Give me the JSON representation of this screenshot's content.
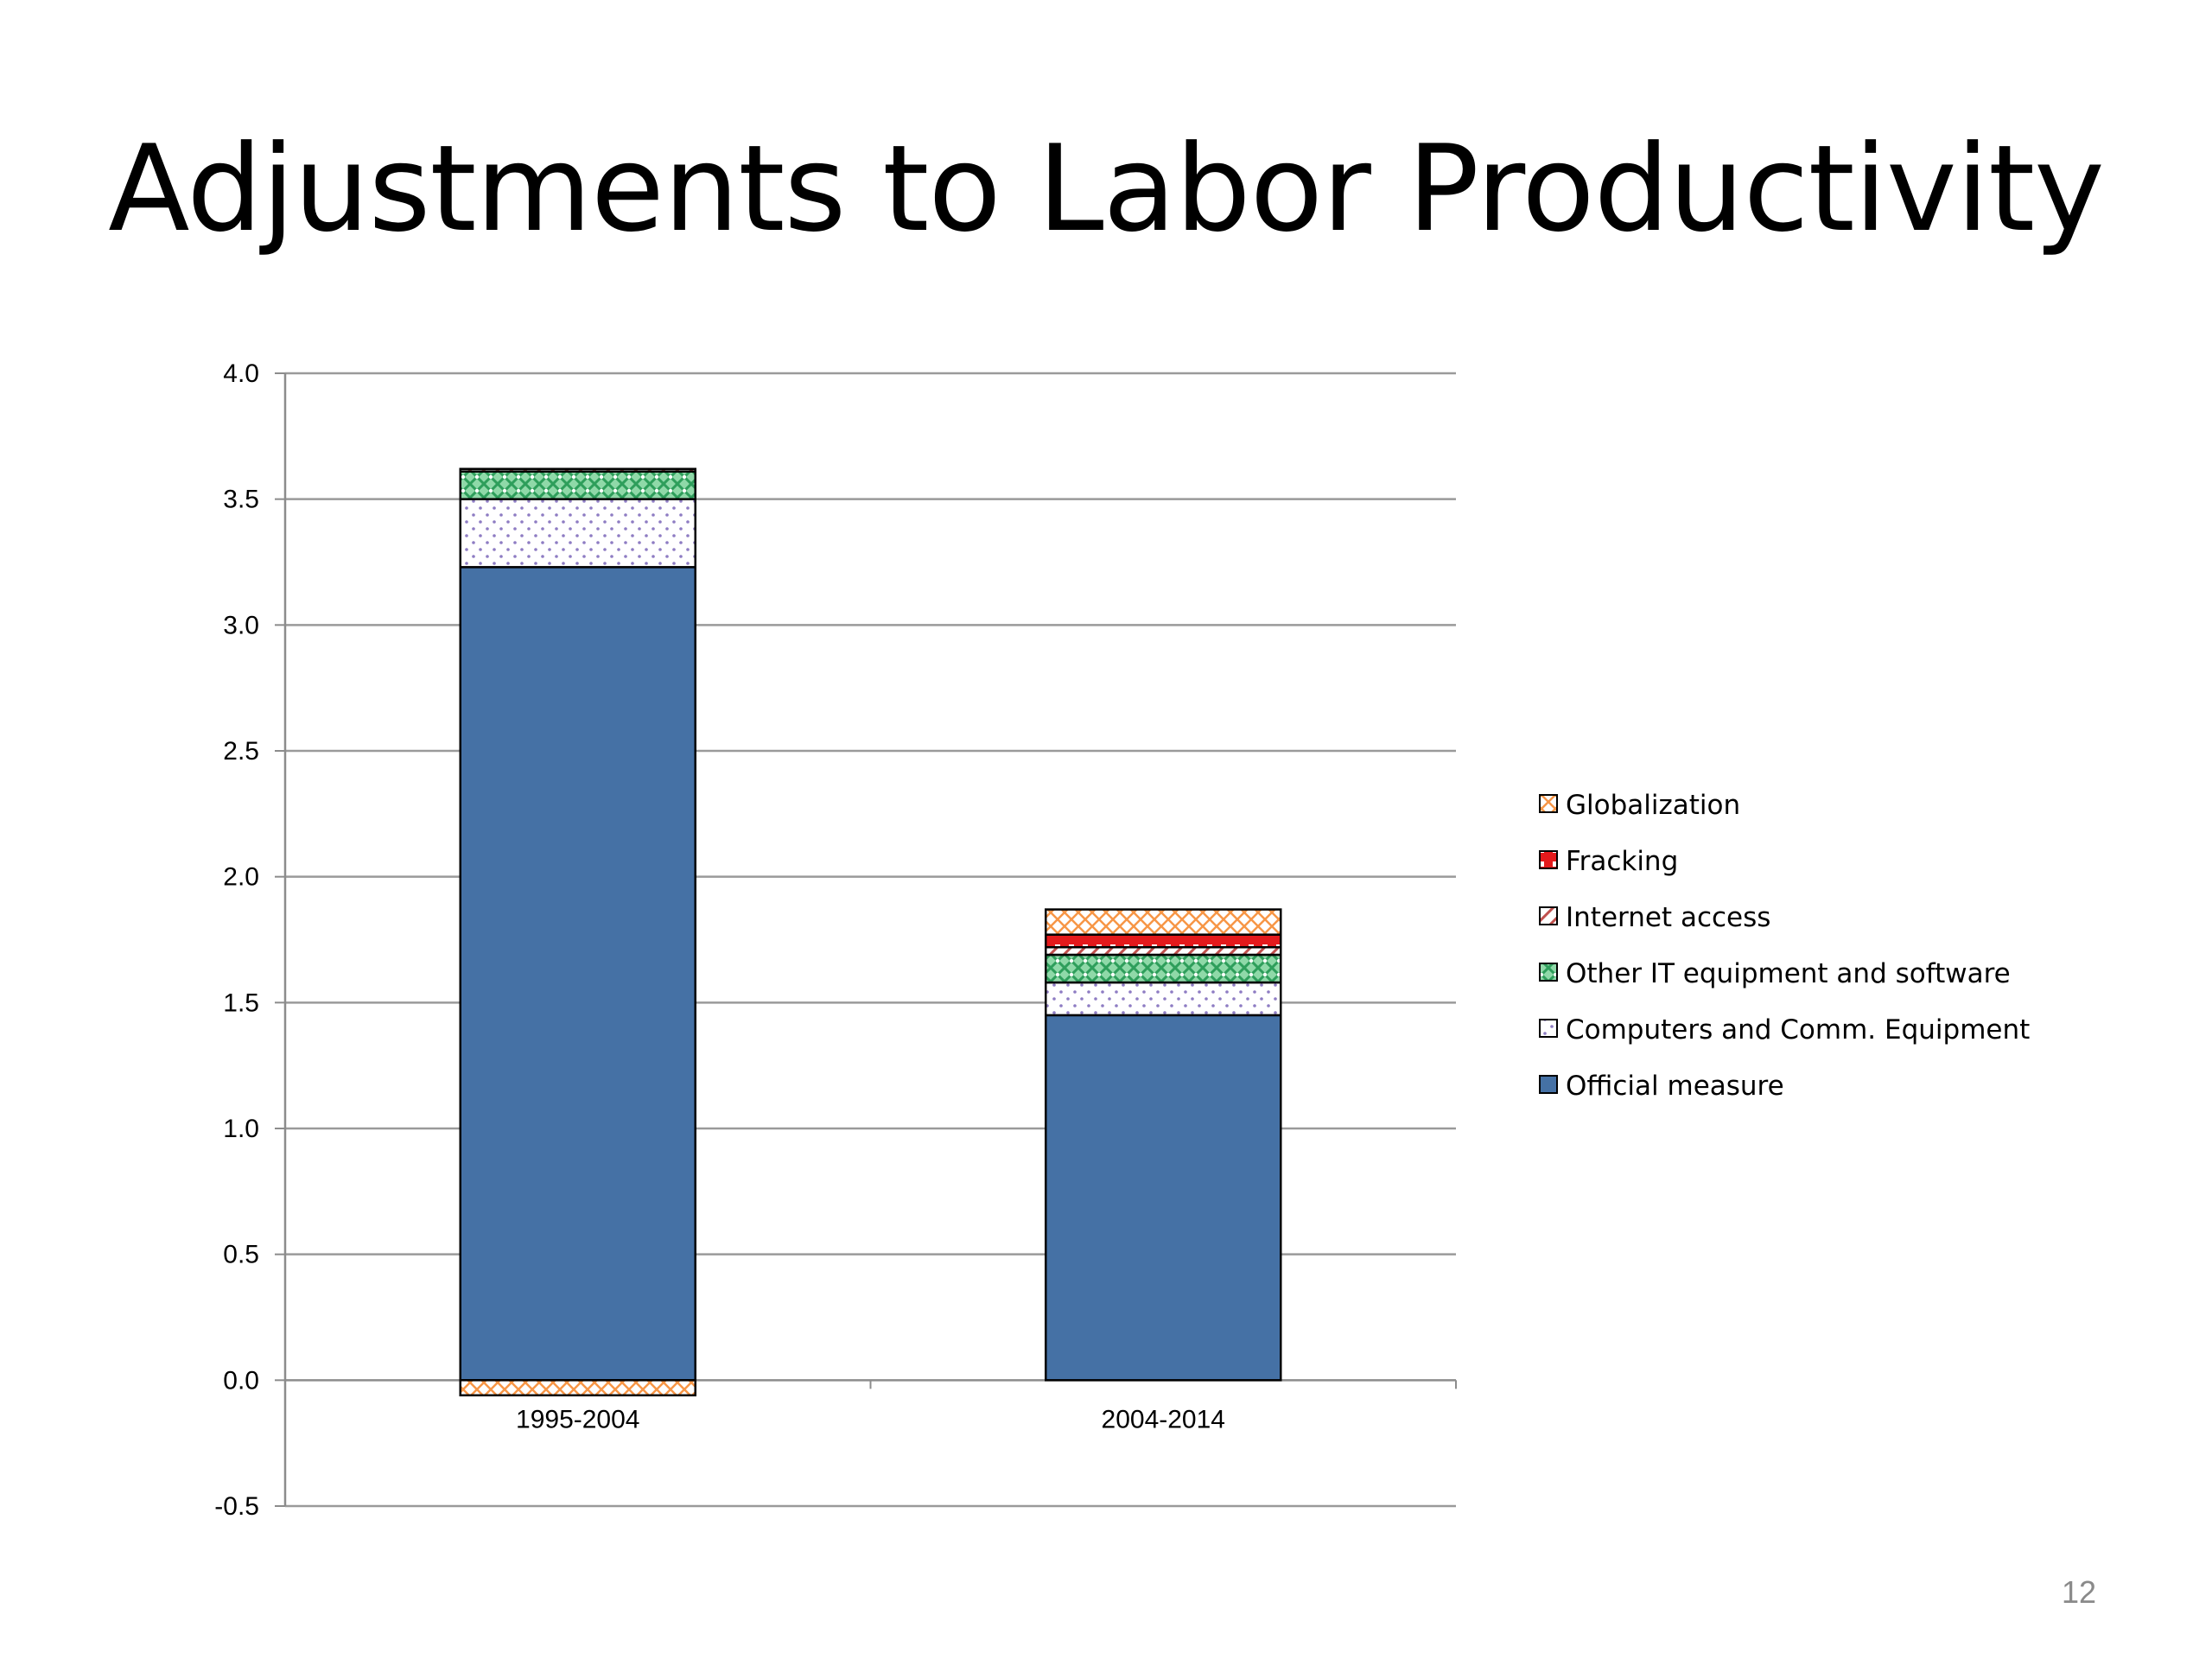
{
  "slide": {
    "title": "Adjustments to Labor Productivity",
    "page_number": "12"
  },
  "chart_data": {
    "type": "bar",
    "stacked": true,
    "title": "",
    "xlabel": "",
    "ylabel": "",
    "categories": [
      "1995-2004",
      "2004-2014"
    ],
    "ylim": [
      -0.5,
      4.0
    ],
    "yticks": [
      -0.5,
      0.0,
      0.5,
      1.0,
      1.5,
      2.0,
      2.5,
      3.0,
      3.5,
      4.0
    ],
    "ytick_labels": [
      "-0.5",
      "0.0",
      "0.5",
      "1.0",
      "1.5",
      "2.0",
      "2.5",
      "3.0",
      "3.5",
      "4.0"
    ],
    "grid": true,
    "legend_position": "right",
    "series": [
      {
        "name": "Official measure",
        "values": [
          3.23,
          1.45
        ],
        "color": "#4571a5",
        "pattern": "solid"
      },
      {
        "name": "Computers and Comm. Equipment",
        "values": [
          0.27,
          0.13
        ],
        "color": "#8e7cc3",
        "pattern": "dots"
      },
      {
        "name": "Other IT equipment and software",
        "values": [
          0.11,
          0.11
        ],
        "color": "#3cb371",
        "pattern": "mesh"
      },
      {
        "name": "Internet access",
        "values": [
          0.01,
          0.03
        ],
        "color": "#c0504d",
        "pattern": "diagonal"
      },
      {
        "name": "Fracking",
        "values": [
          0.0,
          0.05
        ],
        "color": "#e41a1c",
        "pattern": "grid"
      },
      {
        "name": "Globalization",
        "values": [
          -0.06,
          0.1
        ],
        "color": "#f79646",
        "pattern": "crosshatch"
      }
    ],
    "legend_order": [
      "Globalization",
      "Fracking",
      "Internet access",
      "Other IT equipment and software",
      "Computers and Comm. Equipment",
      "Official measure"
    ]
  }
}
